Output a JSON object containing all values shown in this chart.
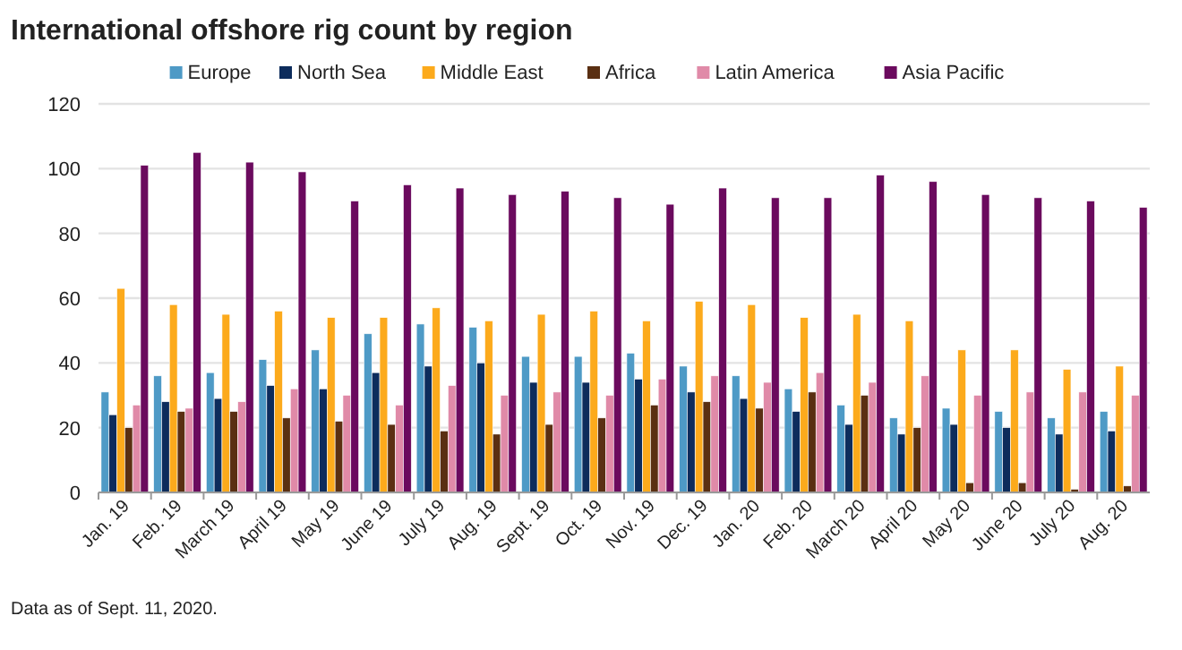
{
  "chart_data": {
    "type": "bar",
    "title": "International offshore rig count by region",
    "categories": [
      "Jan. 19",
      "Feb. 19",
      "March 19",
      "April 19",
      "May 19",
      "June 19",
      "July 19",
      "Aug. 19",
      "Sept. 19",
      "Oct. 19",
      "Nov. 19",
      "Dec. 19",
      "Jan. 20",
      "Feb. 20",
      "March 20",
      "April 20",
      "May 20",
      "June 20",
      "July 20",
      "Aug. 20"
    ],
    "series": [
      {
        "name": "Europe",
        "color": "#4e9ac6",
        "values": [
          31,
          36,
          37,
          41,
          44,
          49,
          52,
          51,
          42,
          42,
          43,
          39,
          36,
          32,
          27,
          23,
          26,
          25,
          23,
          25
        ]
      },
      {
        "name": "North Sea",
        "color": "#0d2c5c",
        "values": [
          24,
          28,
          29,
          33,
          32,
          37,
          39,
          40,
          34,
          34,
          35,
          31,
          29,
          25,
          21,
          18,
          21,
          20,
          18,
          19
        ]
      },
      {
        "name": "Middle East",
        "color": "#fcaa1c",
        "values": [
          63,
          58,
          55,
          56,
          54,
          54,
          57,
          53,
          55,
          56,
          53,
          59,
          58,
          54,
          55,
          53,
          44,
          44,
          38,
          39
        ]
      },
      {
        "name": "Africa",
        "color": "#5a2f12",
        "values": [
          20,
          25,
          25,
          23,
          22,
          21,
          19,
          18,
          21,
          23,
          27,
          28,
          26,
          31,
          30,
          20,
          3,
          3,
          1,
          2
        ]
      },
      {
        "name": "Latin America",
        "color": "#e08aa8",
        "values": [
          27,
          26,
          28,
          32,
          30,
          27,
          33,
          30,
          31,
          30,
          35,
          36,
          34,
          37,
          34,
          36,
          30,
          31,
          31,
          30
        ]
      },
      {
        "name": "Asia Pacific",
        "color": "#6b0a5e",
        "values": [
          101,
          105,
          102,
          99,
          90,
          95,
          94,
          92,
          93,
          91,
          89,
          94,
          91,
          91,
          98,
          96,
          92,
          91,
          90,
          88
        ]
      }
    ],
    "ylim": [
      0,
      120
    ],
    "yticks": [
      0,
      20,
      40,
      60,
      80,
      100,
      120
    ],
    "grid": "y",
    "legend": "top",
    "annotations": [
      "Data as of Sept. 11, 2020."
    ]
  }
}
